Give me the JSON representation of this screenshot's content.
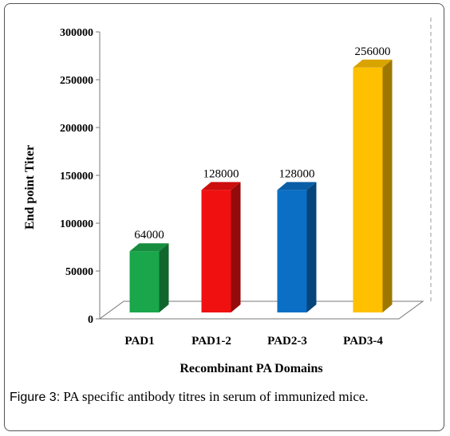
{
  "chart_data": {
    "type": "bar",
    "categories": [
      "PAD1",
      "PAD1-2",
      "PAD2-3",
      "PAD3-4"
    ],
    "values": [
      64000,
      128000,
      128000,
      256000
    ],
    "data_labels": [
      "64000",
      "128000",
      "128000",
      "256000"
    ],
    "colors": [
      "#1aa64a",
      "#f01010",
      "#0a6fc5",
      "#ffc000"
    ],
    "xlabel": "Recombinant PA Domains",
    "ylabel": "End point Titer",
    "ylim": [
      0,
      300000
    ],
    "yticks": [
      0,
      50000,
      100000,
      150000,
      200000,
      250000,
      300000
    ],
    "ytick_labels": [
      "0",
      "50000",
      "100000",
      "150000",
      "200000",
      "250000",
      "300000"
    ],
    "grid": false,
    "style": "3d"
  },
  "caption": {
    "label": "Figure 3:",
    "text": " PA specific antibody titres in serum of immunized mice."
  }
}
